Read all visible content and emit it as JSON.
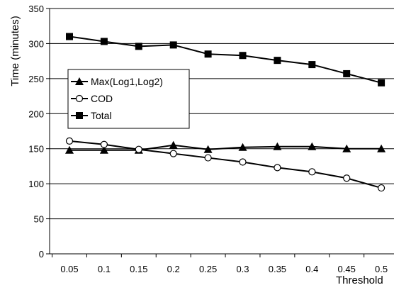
{
  "chart_data": {
    "type": "line",
    "title": "",
    "xlabel": "Threshold",
    "ylabel": "Time (minutes)",
    "categories": [
      "0.05",
      "0.1",
      "0.15",
      "0.2",
      "0.25",
      "0.3",
      "0.35",
      "0.4",
      "0.45",
      "0.5"
    ],
    "ylim": [
      0,
      350
    ],
    "yticks": [
      "0",
      "50",
      "100",
      "150",
      "200",
      "250",
      "300",
      "350"
    ],
    "grid": "horizontal",
    "legend_position": "left",
    "series": [
      {
        "name": "Max(Log1,Log2)",
        "marker": "triangle",
        "color": "#000000",
        "values": [
          148,
          148,
          148,
          155,
          149,
          152,
          153,
          153,
          150,
          150
        ]
      },
      {
        "name": "COD",
        "marker": "open-circle",
        "color": "#000000",
        "values": [
          161,
          156,
          149,
          143,
          137,
          131,
          123,
          117,
          108,
          94
        ]
      },
      {
        "name": "Total",
        "marker": "square",
        "color": "#000000",
        "values": [
          310,
          303,
          296,
          298,
          285,
          283,
          276,
          270,
          257,
          244
        ]
      }
    ]
  }
}
